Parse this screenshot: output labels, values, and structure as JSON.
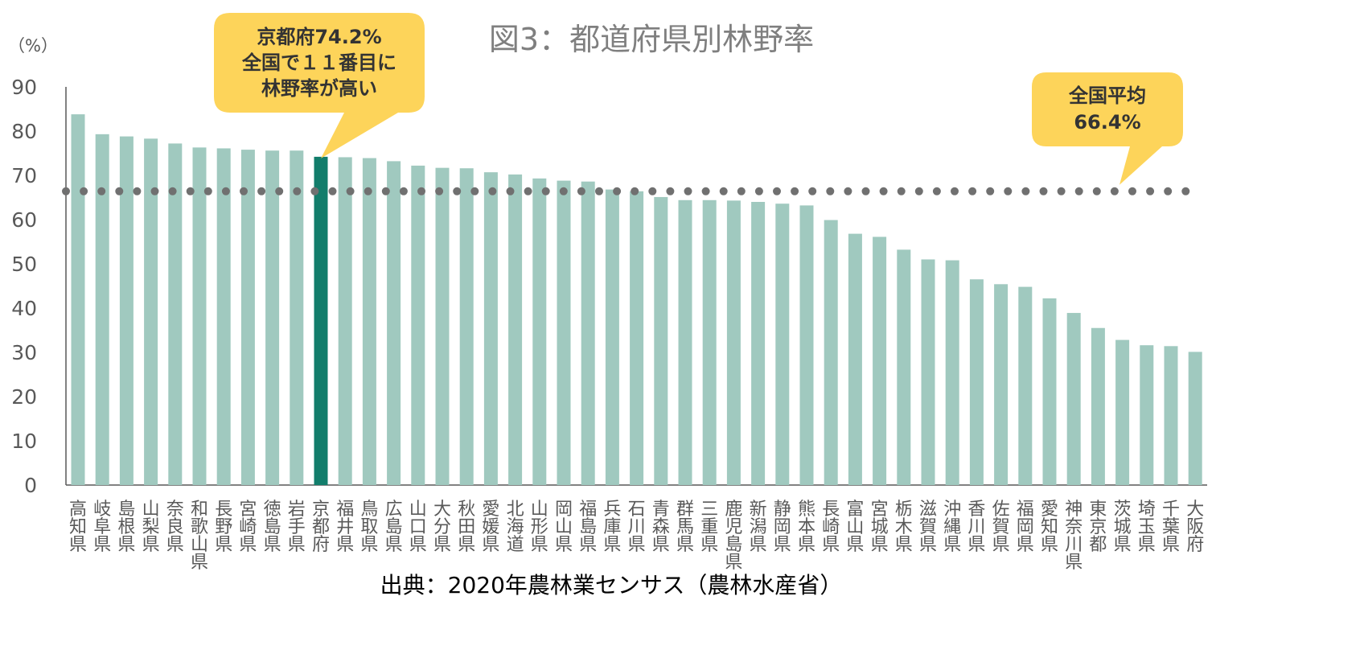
{
  "chart_data": {
    "type": "bar",
    "title": "図3：都道府県別林野率",
    "ylabel": "（%）",
    "ylim": [
      0,
      90
    ],
    "yticks": [
      0,
      10,
      20,
      30,
      40,
      50,
      60,
      70,
      80,
      90
    ],
    "grid": false,
    "categories": [
      "高知県",
      "岐阜県",
      "島根県",
      "山梨県",
      "奈良県",
      "和歌山県",
      "長野県",
      "宮崎県",
      "徳島県",
      "岩手県",
      "京都府",
      "福井県",
      "鳥取県",
      "広島県",
      "山口県",
      "大分県",
      "秋田県",
      "愛媛県",
      "北海道",
      "山形県",
      "岡山県",
      "福島県",
      "兵庫県",
      "石川県",
      "青森県",
      "群馬県",
      "三重県",
      "鹿児島県",
      "新潟県",
      "静岡県",
      "熊本県",
      "長崎県",
      "富山県",
      "宮城県",
      "栃木県",
      "滋賀県",
      "沖縄県",
      "香川県",
      "佐賀県",
      "福岡県",
      "愛知県",
      "神奈川県",
      "東京都",
      "茨城県",
      "埼玉県",
      "千葉県",
      "大阪府"
    ],
    "values": [
      83.8,
      79.3,
      78.8,
      78.3,
      77.2,
      76.3,
      76.1,
      75.8,
      75.6,
      75.6,
      74.2,
      74.1,
      73.9,
      73.2,
      72.2,
      71.7,
      71.6,
      70.7,
      70.2,
      69.3,
      68.8,
      68.6,
      66.8,
      66.4,
      65.1,
      64.4,
      64.4,
      64.3,
      64.0,
      63.6,
      63.2,
      59.9,
      56.8,
      56.1,
      53.2,
      51.0,
      50.8,
      46.5,
      45.4,
      44.8,
      42.2,
      38.9,
      35.5,
      32.8,
      31.6,
      31.4,
      30.1
    ],
    "highlight_category": "京都府",
    "average_value": 66.4,
    "colors": {
      "bar": "#a0c9bf",
      "highlight": "#127d6b",
      "average_line": "#707070",
      "callout": "#fdd45a"
    },
    "annotations": [
      {
        "target": "京都府",
        "lines": [
          "京都府74.2%",
          "全国で１１番目に",
          "林野率が高い"
        ]
      },
      {
        "target": "average",
        "lines": [
          "全国平均",
          "66.4%"
        ]
      }
    ]
  },
  "source_text": "出典：2020年農林業センサス（農林水産省）"
}
